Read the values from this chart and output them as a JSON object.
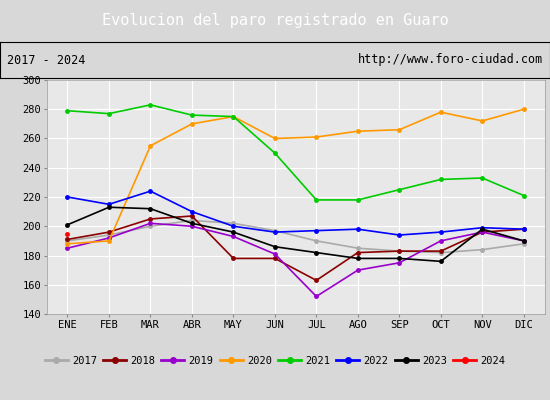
{
  "title": "Evolucion del paro registrado en Guaro",
  "subtitle_left": "2017 - 2024",
  "subtitle_right": "http://www.foro-ciudad.com",
  "months": [
    "ENE",
    "FEB",
    "MAR",
    "ABR",
    "MAY",
    "JUN",
    "JUL",
    "AGO",
    "SEP",
    "OCT",
    "NOV",
    "DIC"
  ],
  "ylim": [
    140,
    300
  ],
  "yticks": [
    140,
    160,
    180,
    200,
    220,
    240,
    260,
    280,
    300
  ],
  "series": {
    "2017": {
      "color": "#aaaaaa",
      "values": [
        190,
        194,
        200,
        204,
        202,
        197,
        190,
        185,
        183,
        182,
        184,
        188
      ]
    },
    "2018": {
      "color": "#8b0000",
      "values": [
        191,
        196,
        205,
        207,
        178,
        178,
        163,
        182,
        183,
        183,
        196,
        198
      ]
    },
    "2019": {
      "color": "#9900cc",
      "values": [
        185,
        192,
        202,
        200,
        193,
        181,
        152,
        170,
        175,
        190,
        196,
        190
      ]
    },
    "2020": {
      "color": "#ff9900",
      "values": [
        188,
        190,
        255,
        270,
        275,
        260,
        261,
        265,
        266,
        278,
        272,
        280
      ]
    },
    "2021": {
      "color": "#00cc00",
      "values": [
        279,
        277,
        283,
        276,
        275,
        250,
        218,
        218,
        225,
        232,
        233,
        221
      ]
    },
    "2022": {
      "color": "#0000ff",
      "values": [
        220,
        215,
        224,
        210,
        200,
        196,
        197,
        198,
        194,
        196,
        199,
        198
      ]
    },
    "2023": {
      "color": "#000000",
      "values": [
        201,
        213,
        212,
        202,
        196,
        186,
        182,
        178,
        178,
        176,
        198,
        190
      ]
    },
    "2024": {
      "color": "#ff0000",
      "values": [
        195,
        null,
        null,
        null,
        null,
        null,
        null,
        null,
        null,
        null,
        null,
        null
      ]
    }
  },
  "background_color": "#d8d8d8",
  "plot_bg_color": "#e8e8e8",
  "title_bg_color": "#4472c4",
  "title_font_color": "#ffffff",
  "grid_color": "#ffffff",
  "border_color": "#000000"
}
